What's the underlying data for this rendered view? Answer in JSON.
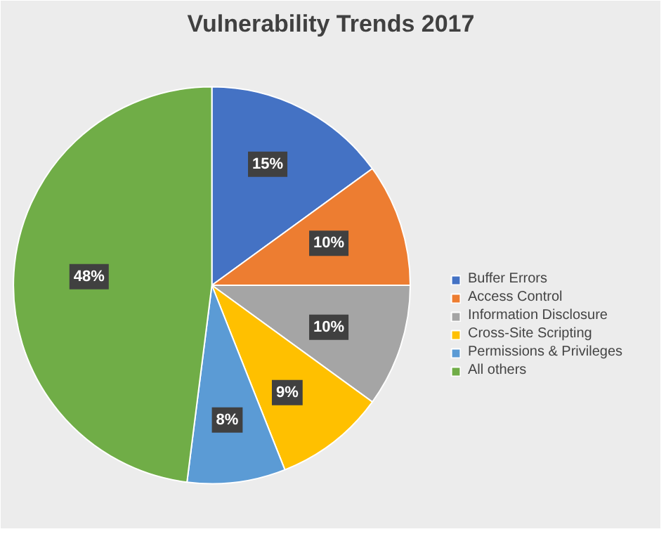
{
  "chart_data": {
    "type": "pie",
    "title": "Vulnerability Trends 2017",
    "categories": [
      "Buffer Errors",
      "Access Control",
      "Information Disclosure",
      "Cross-Site Scripting",
      "Permissions & Privileges",
      "All others"
    ],
    "values": [
      15,
      10,
      10,
      9,
      8,
      48
    ],
    "colors": [
      "#4472c4",
      "#ed7d31",
      "#a5a5a5",
      "#ffc000",
      "#5b9bd5",
      "#70ad47"
    ],
    "value_labels": [
      "15%",
      "10%",
      "10%",
      "9%",
      "8%",
      "48%"
    ],
    "legend": "right"
  }
}
